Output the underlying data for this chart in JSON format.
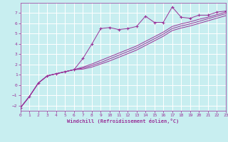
{
  "xlabel": "Windchill (Refroidissement éolien,°C)",
  "background_color": "#c8eef0",
  "grid_color": "#ffffff",
  "line_color": "#993399",
  "xlim": [
    0,
    23
  ],
  "ylim": [
    -2.5,
    8.0
  ],
  "xticks": [
    0,
    1,
    2,
    3,
    4,
    5,
    6,
    7,
    8,
    9,
    10,
    11,
    12,
    13,
    14,
    15,
    16,
    17,
    18,
    19,
    20,
    21,
    22,
    23
  ],
  "yticks": [
    -2,
    -1,
    0,
    1,
    2,
    3,
    4,
    5,
    6,
    7
  ],
  "scatter_x": [
    0,
    1,
    2,
    3,
    4,
    5,
    6,
    7,
    8,
    9,
    10,
    11,
    12,
    13,
    14,
    15,
    16,
    17,
    18,
    19,
    20,
    21,
    22,
    23
  ],
  "scatter_y": [
    -2.2,
    -1.1,
    0.2,
    0.9,
    1.1,
    1.3,
    1.5,
    2.6,
    4.0,
    5.5,
    5.6,
    5.4,
    5.5,
    5.7,
    6.7,
    6.1,
    6.1,
    7.6,
    6.6,
    6.5,
    6.8,
    6.8,
    7.1,
    7.2
  ],
  "line1_x": [
    0,
    1,
    2,
    3,
    4,
    5,
    6,
    7,
    8,
    9,
    10,
    11,
    12,
    13,
    14,
    15,
    16,
    17,
    18,
    19,
    20,
    21,
    22,
    23
  ],
  "line1_y": [
    -2.2,
    -1.1,
    0.2,
    0.9,
    1.1,
    1.3,
    1.5,
    1.75,
    2.05,
    2.4,
    2.75,
    3.1,
    3.45,
    3.8,
    4.25,
    4.7,
    5.15,
    5.7,
    5.95,
    6.15,
    6.4,
    6.6,
    6.85,
    7.1
  ],
  "line2_x": [
    0,
    1,
    2,
    3,
    4,
    5,
    6,
    7,
    8,
    9,
    10,
    11,
    12,
    13,
    14,
    15,
    16,
    17,
    18,
    19,
    20,
    21,
    22,
    23
  ],
  "line2_y": [
    -2.2,
    -1.1,
    0.2,
    0.9,
    1.1,
    1.3,
    1.5,
    1.65,
    1.9,
    2.2,
    2.55,
    2.9,
    3.25,
    3.6,
    4.05,
    4.5,
    4.95,
    5.5,
    5.75,
    5.95,
    6.2,
    6.45,
    6.7,
    6.95
  ],
  "line3_x": [
    0,
    1,
    2,
    3,
    4,
    5,
    6,
    7,
    8,
    9,
    10,
    11,
    12,
    13,
    14,
    15,
    16,
    17,
    18,
    19,
    20,
    21,
    22,
    23
  ],
  "line3_y": [
    -2.2,
    -1.1,
    0.2,
    0.9,
    1.1,
    1.3,
    1.5,
    1.55,
    1.75,
    2.05,
    2.35,
    2.7,
    3.05,
    3.4,
    3.85,
    4.3,
    4.75,
    5.3,
    5.55,
    5.75,
    6.0,
    6.25,
    6.5,
    6.75
  ]
}
